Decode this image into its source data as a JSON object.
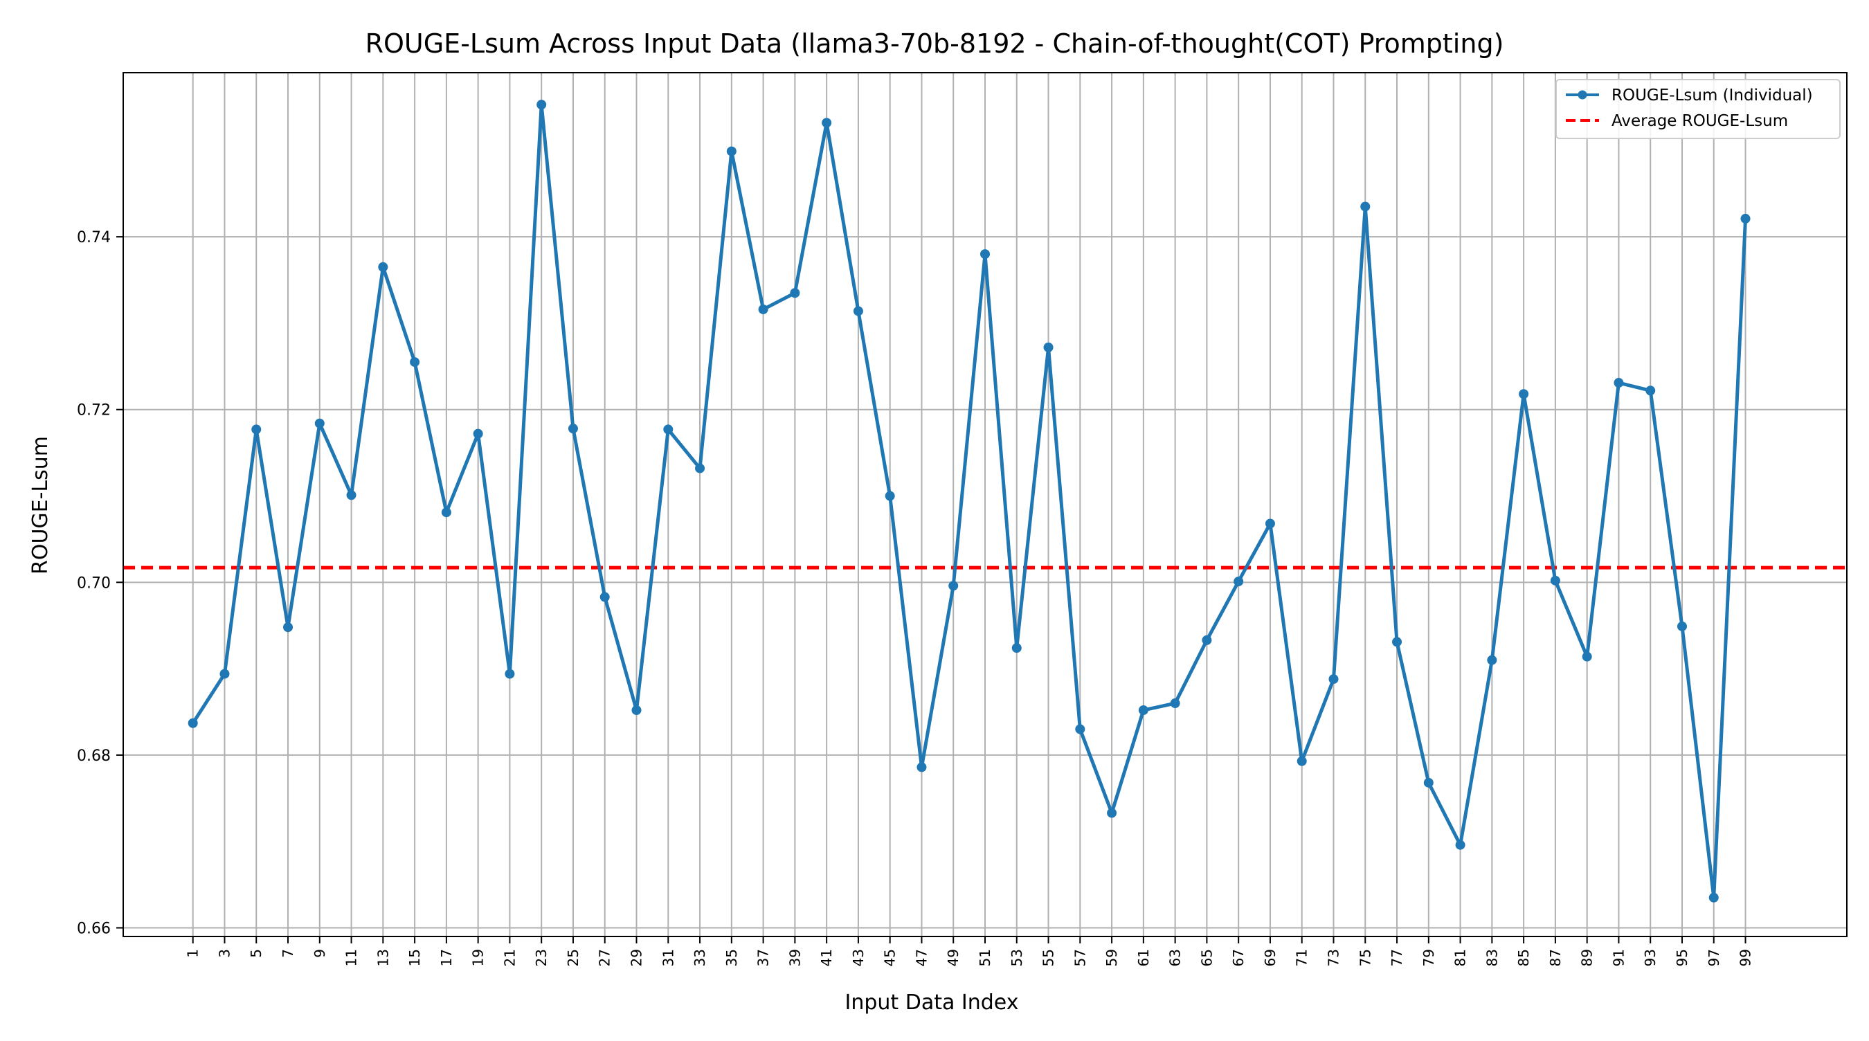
{
  "chart_data": {
    "type": "line",
    "title": "ROUGE-Lsum Across Input Data (llama3-70b-8192 - Chain-of-thought(COT) Prompting)",
    "xlabel": "Input Data Index",
    "ylabel": "ROUGE-Lsum",
    "x": [
      1,
      3,
      5,
      7,
      9,
      11,
      13,
      15,
      17,
      19,
      21,
      23,
      25,
      27,
      29,
      31,
      33,
      35,
      37,
      39,
      41,
      43,
      45,
      47,
      49,
      51,
      53,
      55,
      57,
      59,
      61,
      63,
      65,
      67,
      69,
      71,
      73,
      75,
      77,
      79,
      81,
      83,
      85,
      87,
      89,
      91,
      93,
      95,
      97,
      99
    ],
    "xticks": [
      "1",
      "3",
      "5",
      "7",
      "9",
      "11",
      "13",
      "15",
      "17",
      "19",
      "21",
      "23",
      "25",
      "27",
      "29",
      "31",
      "33",
      "35",
      "37",
      "39",
      "41",
      "43",
      "45",
      "47",
      "49",
      "51",
      "53",
      "55",
      "57",
      "59",
      "61",
      "63",
      "65",
      "67",
      "69",
      "71",
      "73",
      "75",
      "77",
      "79",
      "81",
      "83",
      "85",
      "87",
      "89",
      "91",
      "93",
      "95",
      "97",
      "99"
    ],
    "yticks": [
      "0.66",
      "0.68",
      "0.70",
      "0.72",
      "0.74"
    ],
    "ytick_values": [
      0.66,
      0.68,
      0.7,
      0.72,
      0.74
    ],
    "xlim": [
      -3.4,
      105.4
    ],
    "ylim": [
      0.659,
      0.759
    ],
    "series": [
      {
        "name": "ROUGE-Lsum (Individual)",
        "color": "#1f77b4",
        "style": "solid-with-markers",
        "values": [
          0.6837,
          0.6894,
          0.7177,
          0.6948,
          0.7184,
          0.7101,
          0.7365,
          0.7255,
          0.7081,
          0.7172,
          0.6894,
          0.7553,
          0.7178,
          0.6983,
          0.6852,
          0.7177,
          0.7132,
          0.7499,
          0.7316,
          0.7335,
          0.7532,
          0.7314,
          0.71,
          0.6786,
          0.6996,
          0.738,
          0.6924,
          0.7272,
          0.683,
          0.6733,
          0.6852,
          0.686,
          0.6933,
          0.7001,
          0.7068,
          0.6793,
          0.6888,
          0.7435,
          0.6931,
          0.6768,
          0.6696,
          0.691,
          0.7218,
          0.7002,
          0.6914,
          0.7231,
          0.7222,
          0.6949,
          0.6635,
          0.7421
        ]
      },
      {
        "name": "Average ROUGE-Lsum",
        "color": "#ff0000",
        "style": "dashed",
        "value": 0.7017
      }
    ],
    "grid": true,
    "legend_position": "top-right"
  }
}
